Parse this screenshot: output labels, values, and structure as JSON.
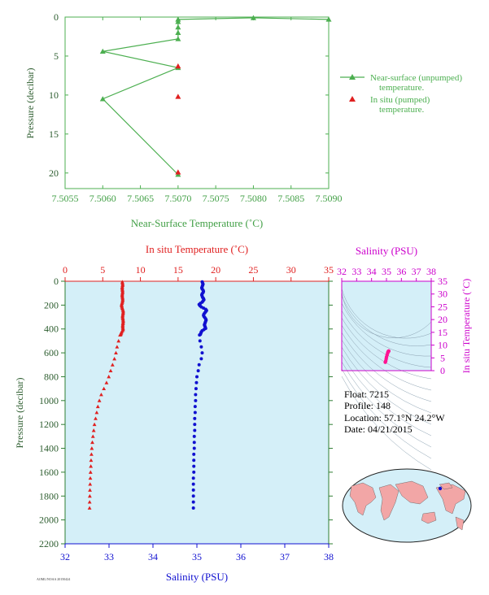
{
  "colors": {
    "green": "#4caf50",
    "axis_green": "#2e7d32",
    "label_green": "#43a047",
    "red": "#e02020",
    "blue": "#1010d0",
    "magenta": "#cc00cc",
    "pink": "#ff1493",
    "panel_bg": "#d4eff8",
    "contour": "#8aa0b0"
  },
  "info": {
    "float_line": "Float:  7215",
    "profile_line": "Profile:  148",
    "location_line": "Location:  57.1°N  24.2°W",
    "date_line": "Date:  04/21/2015"
  },
  "footer": {
    "tiny": "AOML/NOAA 20150424"
  },
  "chart_data": [
    {
      "type": "line",
      "xlabel": "Near-Surface Temperature (˚C)",
      "ylabel": "Pressure (decibar)",
      "xlim": [
        7.5055,
        7.509
      ],
      "ylim": [
        0,
        22
      ],
      "y_inverted": true,
      "x_ticks": [
        "7.5055",
        "7.5060",
        "7.5065",
        "7.5070",
        "7.5075",
        "7.5080",
        "7.5085",
        "7.5090"
      ],
      "x_tick_values": [
        7.5055,
        7.506,
        7.5065,
        7.507,
        7.5075,
        7.508,
        7.5085,
        7.509
      ],
      "y_ticks": [
        "0",
        "5",
        "10",
        "15",
        "20"
      ],
      "y_tick_values": [
        0,
        5,
        10,
        15,
        20
      ],
      "legend_position": "right",
      "series": [
        {
          "name": "Near-surface (unpumped) temperature.",
          "marker": "triangle",
          "x": [
            7.509,
            7.508,
            7.507,
            7.507,
            7.507,
            7.507,
            7.507,
            7.506,
            7.507,
            7.506,
            7.507
          ],
          "y": [
            0.3,
            0.1,
            0.3,
            0.6,
            1.3,
            2.0,
            2.8,
            4.4,
            6.5,
            10.5,
            20.2
          ]
        },
        {
          "name": "In situ (pumped) temperature.",
          "marker": "triangle",
          "x": [
            7.507,
            7.507,
            7.507
          ],
          "y": [
            6.3,
            10.2,
            19.9
          ]
        }
      ]
    },
    {
      "type": "scatter",
      "ylabel": "Pressure (decibar)",
      "top_xlabel": "In situ Temperature (˚C)",
      "bottom_xlabel": "Salinity (PSU)",
      "ylim": [
        0,
        2200
      ],
      "y_inverted": true,
      "y_ticks": [
        "0",
        "200",
        "400",
        "600",
        "800",
        "1000",
        "1200",
        "1400",
        "1600",
        "1800",
        "2000",
        "2200"
      ],
      "temp_lim": [
        0,
        35
      ],
      "temp_ticks": [
        "0",
        "5",
        "10",
        "15",
        "20",
        "25",
        "30",
        "35"
      ],
      "sal_lim": [
        32,
        38
      ],
      "sal_ticks": [
        "32",
        "33",
        "34",
        "35",
        "36",
        "37",
        "38"
      ],
      "temperature_profile": {
        "pressure": [
          5,
          15,
          25,
          35,
          45,
          55,
          65,
          75,
          85,
          95,
          105,
          115,
          125,
          135,
          145,
          155,
          165,
          175,
          185,
          195,
          205,
          215,
          225,
          235,
          245,
          255,
          265,
          275,
          285,
          295,
          305,
          315,
          325,
          335,
          345,
          355,
          365,
          375,
          385,
          395,
          405,
          415,
          425,
          435,
          445,
          450,
          500,
          550,
          600,
          650,
          700,
          750,
          800,
          850,
          900,
          950,
          1000,
          1050,
          1100,
          1150,
          1200,
          1250,
          1300,
          1350,
          1400,
          1450,
          1500,
          1550,
          1600,
          1650,
          1700,
          1750,
          1800,
          1850,
          1900
        ],
        "value": [
          7.6,
          7.62,
          7.65,
          7.63,
          7.6,
          7.58,
          7.6,
          7.62,
          7.64,
          7.63,
          7.6,
          7.58,
          7.59,
          7.62,
          7.64,
          7.65,
          7.63,
          7.6,
          7.55,
          7.5,
          7.52,
          7.55,
          7.6,
          7.65,
          7.7,
          7.72,
          7.7,
          7.68,
          7.65,
          7.63,
          7.65,
          7.68,
          7.7,
          7.72,
          7.7,
          7.68,
          7.66,
          7.65,
          7.66,
          7.68,
          7.7,
          7.6,
          7.5,
          7.45,
          7.4,
          7.3,
          7.1,
          6.9,
          6.75,
          6.55,
          6.3,
          6.05,
          5.8,
          5.5,
          5.15,
          4.8,
          4.55,
          4.35,
          4.2,
          4.05,
          3.9,
          3.8,
          3.7,
          3.62,
          3.55,
          3.5,
          3.45,
          3.42,
          3.38,
          3.35,
          3.32,
          3.3,
          3.28,
          3.26,
          3.25
        ]
      },
      "salinity_profile": {
        "pressure": [
          5,
          15,
          25,
          35,
          45,
          55,
          65,
          75,
          85,
          95,
          105,
          115,
          125,
          135,
          145,
          155,
          165,
          175,
          185,
          195,
          205,
          215,
          225,
          235,
          245,
          255,
          265,
          275,
          285,
          295,
          305,
          315,
          325,
          335,
          345,
          355,
          365,
          375,
          385,
          395,
          405,
          415,
          425,
          435,
          445,
          450,
          500,
          550,
          600,
          650,
          700,
          750,
          800,
          850,
          900,
          950,
          1000,
          1050,
          1100,
          1150,
          1200,
          1250,
          1300,
          1350,
          1400,
          1450,
          1500,
          1550,
          1600,
          1650,
          1700,
          1750,
          1800,
          1850,
          1900
        ],
        "value": [
          35.12,
          35.13,
          35.14,
          35.13,
          35.12,
          35.11,
          35.12,
          35.14,
          35.15,
          35.14,
          35.12,
          35.11,
          35.12,
          35.13,
          35.15,
          35.16,
          35.14,
          35.12,
          35.08,
          35.05,
          35.07,
          35.1,
          35.15,
          35.2,
          35.22,
          35.2,
          35.18,
          35.16,
          35.15,
          35.16,
          35.18,
          35.2,
          35.21,
          35.2,
          35.19,
          35.18,
          35.17,
          35.18,
          35.19,
          35.2,
          35.16,
          35.12,
          35.1,
          35.09,
          35.08,
          35.06,
          35.07,
          35.1,
          35.12,
          35.1,
          35.05,
          35.03,
          35.0,
          34.99,
          34.98,
          34.97,
          34.97,
          34.96,
          34.96,
          34.95,
          34.95,
          34.95,
          34.94,
          34.94,
          34.94,
          34.93,
          34.93,
          34.93,
          34.93,
          34.92,
          34.92,
          34.92,
          34.92,
          34.92,
          34.92
        ]
      }
    },
    {
      "type": "scatter",
      "xlabel": "Salinity (PSU)",
      "ylabel": "In situ Temperature (˚C)",
      "xlim": [
        32,
        38
      ],
      "ylim": [
        0,
        35
      ],
      "x_ticks": [
        "32",
        "33",
        "34",
        "35",
        "36",
        "37",
        "38"
      ],
      "y_ticks": [
        "0",
        "5",
        "10",
        "15",
        "20",
        "25",
        "30",
        "35"
      ],
      "series": [
        {
          "x": [
            34.92,
            34.95,
            34.98,
            35.0,
            35.04,
            35.08,
            35.1,
            35.12,
            35.15,
            35.15
          ],
          "y": [
            3.3,
            3.8,
            4.6,
            5.3,
            6.1,
            6.9,
            7.3,
            7.5,
            7.6,
            7.7
          ]
        }
      ]
    }
  ]
}
